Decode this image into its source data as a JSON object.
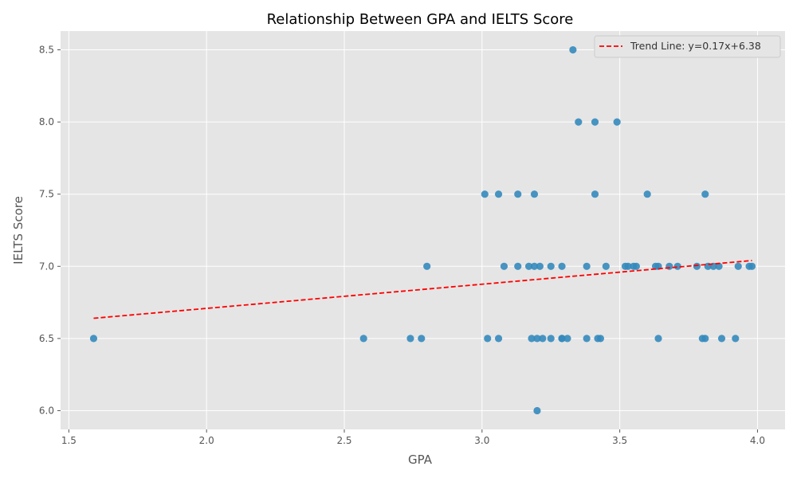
{
  "chart_data": {
    "type": "scatter",
    "title": "Relationship Between GPA and IELTS Score",
    "xlabel": "GPA",
    "ylabel": "IELTS Score",
    "xlim": [
      1.47,
      4.1
    ],
    "ylim": [
      5.87,
      8.63
    ],
    "xticks": [
      1.5,
      2.0,
      2.5,
      3.0,
      3.5,
      4.0
    ],
    "yticks": [
      6.0,
      6.5,
      7.0,
      7.5,
      8.0,
      8.5
    ],
    "grid": true,
    "legend_position": "top-right",
    "colors": {
      "background": "#e5e5e5",
      "grid": "#ffffff",
      "points": "#348abd",
      "trend": "#ff0000"
    },
    "series": [
      {
        "type": "scatter",
        "points": [
          [
            1.59,
            6.5
          ],
          [
            2.57,
            6.5
          ],
          [
            2.74,
            6.5
          ],
          [
            2.78,
            6.5
          ],
          [
            2.8,
            7.0
          ],
          [
            3.01,
            7.5
          ],
          [
            3.02,
            6.5
          ],
          [
            3.06,
            7.5
          ],
          [
            3.06,
            6.5
          ],
          [
            3.08,
            7.0
          ],
          [
            3.13,
            7.5
          ],
          [
            3.13,
            7.0
          ],
          [
            3.17,
            7.0
          ],
          [
            3.18,
            6.5
          ],
          [
            3.19,
            7.5
          ],
          [
            3.19,
            7.0
          ],
          [
            3.2,
            6.5
          ],
          [
            3.2,
            6.0
          ],
          [
            3.21,
            7.0
          ],
          [
            3.22,
            6.5
          ],
          [
            3.25,
            7.0
          ],
          [
            3.25,
            6.5
          ],
          [
            3.29,
            7.0
          ],
          [
            3.29,
            6.5
          ],
          [
            3.29,
            6.5
          ],
          [
            3.31,
            6.5
          ],
          [
            3.33,
            8.5
          ],
          [
            3.35,
            8.0
          ],
          [
            3.38,
            7.0
          ],
          [
            3.38,
            6.5
          ],
          [
            3.41,
            8.0
          ],
          [
            3.41,
            7.5
          ],
          [
            3.42,
            6.5
          ],
          [
            3.43,
            6.5
          ],
          [
            3.45,
            7.0
          ],
          [
            3.49,
            8.0
          ],
          [
            3.52,
            7.0
          ],
          [
            3.53,
            7.0
          ],
          [
            3.55,
            7.0
          ],
          [
            3.56,
            7.0
          ],
          [
            3.6,
            7.5
          ],
          [
            3.63,
            7.0
          ],
          [
            3.64,
            7.0
          ],
          [
            3.64,
            6.5
          ],
          [
            3.68,
            7.0
          ],
          [
            3.71,
            7.0
          ],
          [
            3.78,
            7.0
          ],
          [
            3.8,
            6.5
          ],
          [
            3.81,
            6.5
          ],
          [
            3.81,
            7.5
          ],
          [
            3.82,
            7.0
          ],
          [
            3.84,
            7.0
          ],
          [
            3.86,
            7.0
          ],
          [
            3.87,
            6.5
          ],
          [
            3.92,
            6.5
          ],
          [
            3.93,
            7.0
          ],
          [
            3.97,
            7.0
          ],
          [
            3.98,
            7.0
          ]
        ]
      },
      {
        "type": "line",
        "name": "Trend Line: y=0.17x+6.38",
        "style": "dashed",
        "x": [
          1.59,
          3.98
        ],
        "y": [
          6.64,
          7.04
        ]
      }
    ]
  }
}
